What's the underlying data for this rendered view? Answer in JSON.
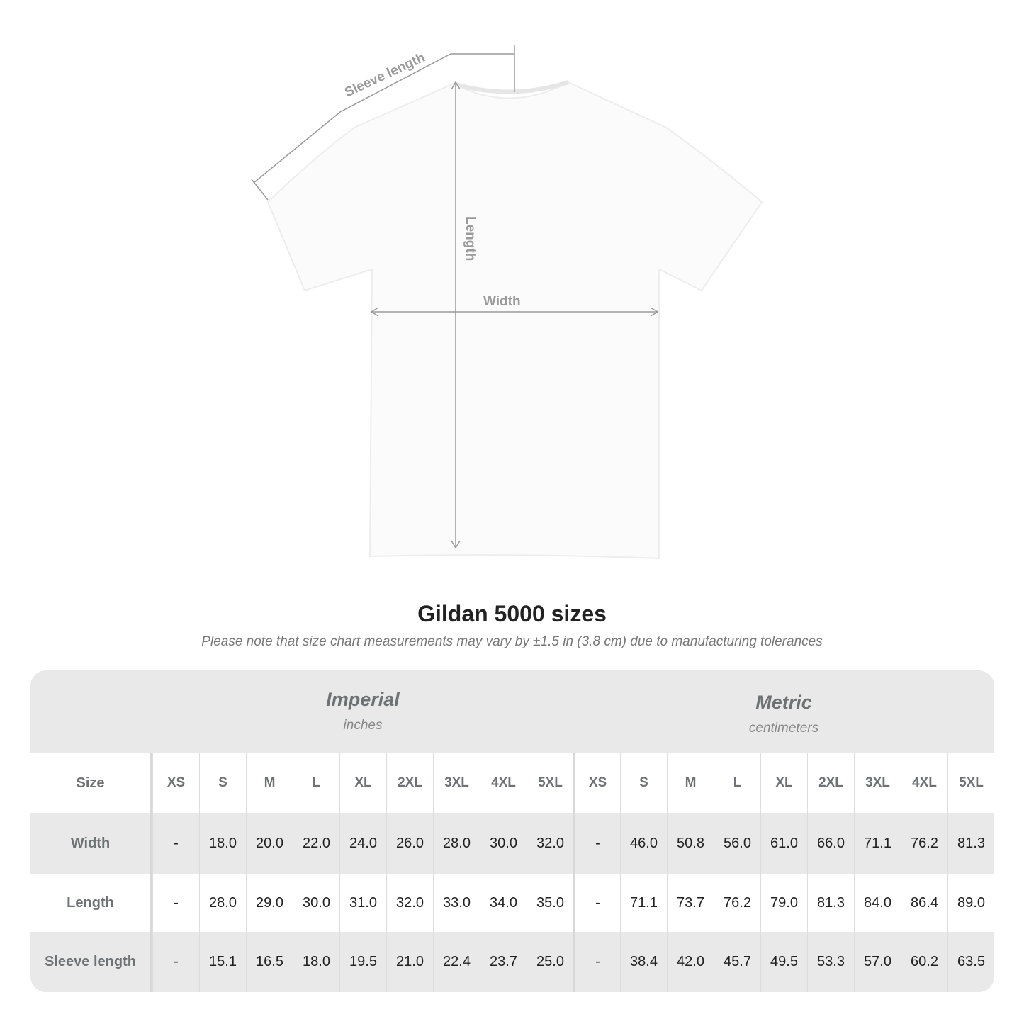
{
  "diagram": {
    "labels": {
      "sleeve": "Sleeve length",
      "length": "Length",
      "width": "Width"
    },
    "line_color": "#9a9a9a"
  },
  "title": "Gildan 5000 sizes",
  "subtitle": "Please note that size chart measurements may vary by ±1.5 in (3.8 cm) due to manufacturing tolerances",
  "table": {
    "imperial": {
      "name": "Imperial",
      "unit": "inches"
    },
    "metric": {
      "name": "Metric",
      "unit": "centimeters"
    },
    "size_label": "Size",
    "sizes": [
      "XS",
      "S",
      "M",
      "L",
      "XL",
      "2XL",
      "3XL",
      "4XL",
      "5XL"
    ],
    "rows": [
      {
        "label": "Width",
        "imperial": [
          "-",
          "18.0",
          "20.0",
          "22.0",
          "24.0",
          "26.0",
          "28.0",
          "30.0",
          "32.0"
        ],
        "metric": [
          "-",
          "46.0",
          "50.8",
          "56.0",
          "61.0",
          "66.0",
          "71.1",
          "76.2",
          "81.3"
        ]
      },
      {
        "label": "Length",
        "imperial": [
          "-",
          "28.0",
          "29.0",
          "30.0",
          "31.0",
          "32.0",
          "33.0",
          "34.0",
          "35.0"
        ],
        "metric": [
          "-",
          "71.1",
          "73.7",
          "76.2",
          "79.0",
          "81.3",
          "84.0",
          "86.4",
          "89.0"
        ]
      },
      {
        "label": "Sleeve length",
        "imperial": [
          "-",
          "15.1",
          "16.5",
          "18.0",
          "19.5",
          "21.0",
          "22.4",
          "23.7",
          "25.0"
        ],
        "metric": [
          "-",
          "38.4",
          "42.0",
          "45.7",
          "49.5",
          "53.3",
          "57.0",
          "60.2",
          "63.5"
        ]
      }
    ]
  }
}
